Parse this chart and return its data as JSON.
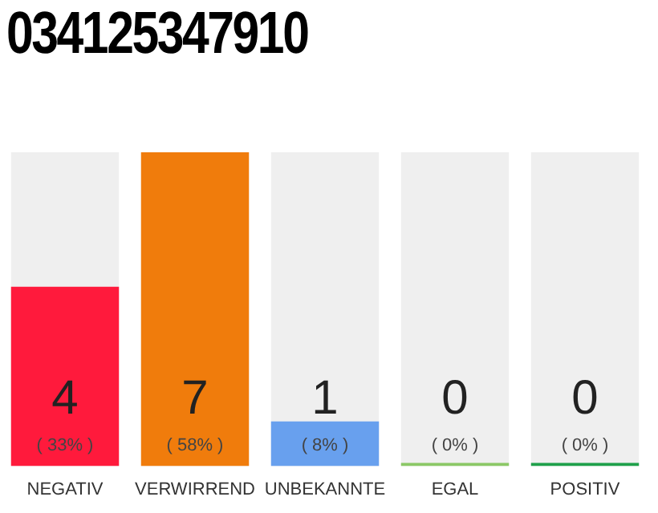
{
  "chart_data": {
    "type": "bar",
    "title": "034125347910",
    "categories": [
      "NEGATIV",
      "VERWIRREND",
      "UNBEKANNTE",
      "EGAL",
      "POSITIV"
    ],
    "values": [
      4,
      7,
      1,
      0,
      0
    ],
    "colors": [
      "#ff1a3c",
      "#f07c0c",
      "#68a0ee",
      "#8bc866",
      "#1fa04a"
    ],
    "ylim": [
      0,
      7
    ],
    "tick_labels": "x",
    "grid": false,
    "legend": false,
    "data_labels": true,
    "annotations": [
      "( 33% )",
      "( 58% )",
      "( 8% )",
      "( 0% )",
      "( 0% )"
    ]
  }
}
